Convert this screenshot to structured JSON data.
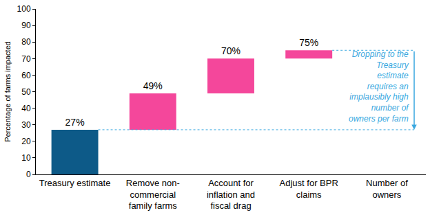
{
  "chart_data": {
    "type": "waterfall",
    "categories": [
      "Treasury estimate",
      "Remove non-\ncommercial\nfamily farms",
      "Account for\ninflation and\nfiscal drag",
      "Adjust for BPR\nclaims",
      "Number of\nowners"
    ],
    "values": [
      27,
      49,
      70,
      75,
      null
    ],
    "value_labels": [
      "27%",
      "49%",
      "70%",
      "75%",
      null
    ],
    "colors": [
      "#0d5a88",
      "#f4479b",
      "#f4479b",
      "#f4479b",
      null
    ],
    "data_labels": true,
    "y_label": "Percentage of farms impacted",
    "ylim": [
      0,
      100
    ],
    "yticks": [
      0,
      10,
      20,
      30,
      40,
      50,
      60,
      70,
      80,
      90,
      100
    ],
    "grid": false,
    "annotation": {
      "text": "Dropping to the\nTreasury\nestimate\nrequires an\nimplausibly high\nnumber of\nowners per farm",
      "color": "#3aa8e0"
    }
  }
}
